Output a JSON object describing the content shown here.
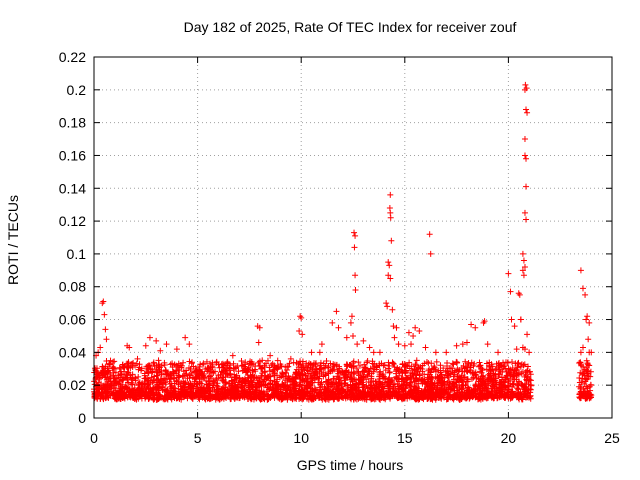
{
  "chart_data": {
    "type": "scatter",
    "title": "Day 182 of 2025, Rate Of TEC Index for receiver zouf",
    "xlabel": "GPS time / hours",
    "ylabel": "ROTI / TECUs",
    "xlim": [
      0,
      25
    ],
    "ylim": [
      0,
      0.22
    ],
    "xticks": [
      0,
      5,
      10,
      15,
      20,
      25
    ],
    "xtick_labels": [
      "0",
      "5",
      "10",
      "15",
      "20",
      "25"
    ],
    "yticks": [
      0,
      0.02,
      0.04,
      0.06,
      0.08,
      0.1,
      0.12,
      0.14,
      0.16,
      0.18,
      0.2,
      0.22
    ],
    "ytick_labels": [
      "0",
      "0.02",
      "0.04",
      "0.06",
      "0.08",
      "0.1",
      "0.12",
      "0.14",
      "0.16",
      "0.18",
      "0.2",
      "0.22"
    ],
    "grid": true,
    "marker": "+",
    "color": "#ff0000",
    "coverage": [
      [
        0,
        21.1
      ],
      [
        23.4,
        24.0
      ]
    ],
    "baseline_band": [
      0.005,
      0.035
    ],
    "series": [
      {
        "name": "ROTI",
        "points": [
          [
            0.3,
            0.043
          ],
          [
            0.4,
            0.07
          ],
          [
            0.45,
            0.071
          ],
          [
            0.5,
            0.063
          ],
          [
            0.55,
            0.054
          ],
          [
            0.6,
            0.048
          ],
          [
            0.2,
            0.04
          ],
          [
            0.1,
            0.038
          ],
          [
            1.6,
            0.044
          ],
          [
            1.7,
            0.043
          ],
          [
            2.1,
            0.036
          ],
          [
            2.5,
            0.044
          ],
          [
            2.7,
            0.049
          ],
          [
            3.0,
            0.047
          ],
          [
            3.2,
            0.041
          ],
          [
            3.5,
            0.045
          ],
          [
            4.0,
            0.042
          ],
          [
            4.4,
            0.049
          ],
          [
            4.6,
            0.045
          ],
          [
            6.7,
            0.038
          ],
          [
            7.3,
            0.034
          ],
          [
            7.9,
            0.056
          ],
          [
            8.0,
            0.055
          ],
          [
            7.95,
            0.046
          ],
          [
            8.5,
            0.038
          ],
          [
            9.5,
            0.036
          ],
          [
            9.95,
            0.062
          ],
          [
            10.0,
            0.061
          ],
          [
            9.9,
            0.053
          ],
          [
            10.05,
            0.051
          ],
          [
            10.5,
            0.04
          ],
          [
            10.9,
            0.04
          ],
          [
            11.0,
            0.045
          ],
          [
            11.5,
            0.058
          ],
          [
            11.7,
            0.065
          ],
          [
            11.8,
            0.055
          ],
          [
            12.2,
            0.049
          ],
          [
            12.4,
            0.058
          ],
          [
            12.45,
            0.062
          ],
          [
            12.55,
            0.113
          ],
          [
            12.6,
            0.111
          ],
          [
            12.57,
            0.104
          ],
          [
            12.6,
            0.087
          ],
          [
            12.62,
            0.078
          ],
          [
            12.5,
            0.05
          ],
          [
            12.7,
            0.045
          ],
          [
            13.0,
            0.047
          ],
          [
            13.3,
            0.043
          ],
          [
            13.5,
            0.04
          ],
          [
            13.8,
            0.04
          ],
          [
            14.1,
            0.07
          ],
          [
            14.15,
            0.068
          ],
          [
            14.2,
            0.095
          ],
          [
            14.25,
            0.093
          ],
          [
            14.2,
            0.087
          ],
          [
            14.3,
            0.085
          ],
          [
            14.3,
            0.125
          ],
          [
            14.28,
            0.128
          ],
          [
            14.32,
            0.122
          ],
          [
            14.3,
            0.136
          ],
          [
            14.35,
            0.108
          ],
          [
            14.4,
            0.066
          ],
          [
            14.45,
            0.056
          ],
          [
            14.5,
            0.049
          ],
          [
            14.6,
            0.055
          ],
          [
            14.7,
            0.045
          ],
          [
            15.0,
            0.044
          ],
          [
            15.2,
            0.052
          ],
          [
            15.4,
            0.05
          ],
          [
            15.5,
            0.055
          ],
          [
            15.7,
            0.053
          ],
          [
            15.3,
            0.045
          ],
          [
            16.2,
            0.112
          ],
          [
            16.25,
            0.1
          ],
          [
            16.0,
            0.043
          ],
          [
            16.5,
            0.04
          ],
          [
            17.0,
            0.04
          ],
          [
            17.5,
            0.044
          ],
          [
            17.8,
            0.045
          ],
          [
            18.0,
            0.046
          ],
          [
            18.2,
            0.057
          ],
          [
            18.4,
            0.055
          ],
          [
            18.8,
            0.058
          ],
          [
            18.85,
            0.059
          ],
          [
            19.0,
            0.045
          ],
          [
            19.5,
            0.04
          ],
          [
            20.0,
            0.088
          ],
          [
            20.1,
            0.077
          ],
          [
            20.15,
            0.06
          ],
          [
            20.3,
            0.056
          ],
          [
            20.4,
            0.042
          ],
          [
            20.45,
            0.033
          ],
          [
            20.5,
            0.076
          ],
          [
            20.55,
            0.075
          ],
          [
            20.6,
            0.06
          ],
          [
            20.7,
            0.09
          ],
          [
            20.75,
            0.087
          ],
          [
            20.8,
            0.092
          ],
          [
            20.7,
            0.1
          ],
          [
            20.75,
            0.096
          ],
          [
            20.8,
            0.125
          ],
          [
            20.85,
            0.121
          ],
          [
            20.85,
            0.141
          ],
          [
            20.8,
            0.16
          ],
          [
            20.85,
            0.158
          ],
          [
            20.8,
            0.17
          ],
          [
            20.85,
            0.188
          ],
          [
            20.9,
            0.186
          ],
          [
            20.8,
            0.2
          ],
          [
            20.82,
            0.203
          ],
          [
            20.88,
            0.201
          ],
          [
            20.9,
            0.051
          ],
          [
            20.8,
            0.042
          ],
          [
            20.7,
            0.043
          ],
          [
            20.6,
            0.06
          ],
          [
            21.0,
            0.04
          ],
          [
            23.5,
            0.09
          ],
          [
            23.6,
            0.079
          ],
          [
            23.7,
            0.075
          ],
          [
            23.8,
            0.062
          ],
          [
            23.75,
            0.06
          ],
          [
            23.9,
            0.058
          ],
          [
            23.85,
            0.048
          ],
          [
            23.6,
            0.043
          ],
          [
            23.5,
            0.04
          ],
          [
            23.9,
            0.04
          ],
          [
            24.0,
            0.04
          ]
        ]
      }
    ]
  }
}
